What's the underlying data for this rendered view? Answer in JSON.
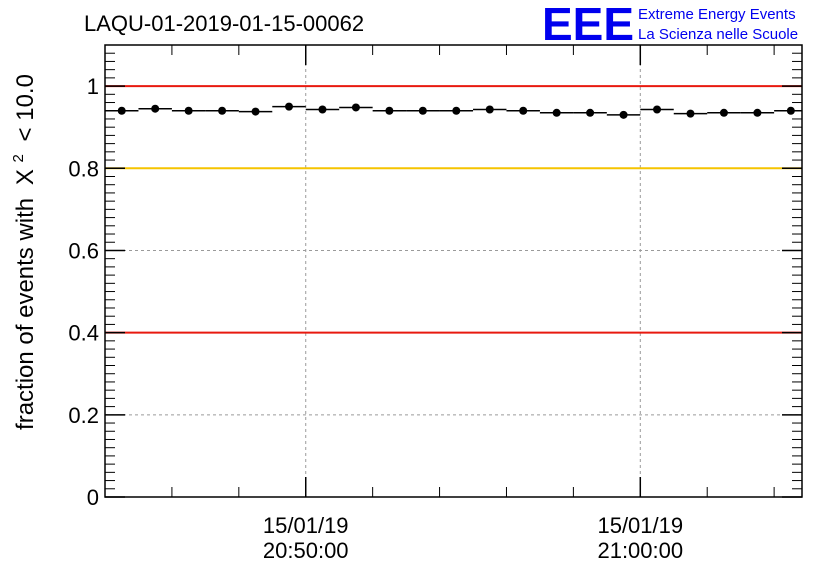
{
  "header": {
    "title": "LAQU-01-2019-01-15-00062",
    "logo_text": "EEE",
    "logo_line1": "Extreme Energy Events",
    "logo_line2": "La Scienza nelle Scuole"
  },
  "colors": {
    "threshold_red": "#e8190f",
    "threshold_yellow": "#f5c400",
    "points": "#000000",
    "logo": "#0000ee"
  },
  "chart_data": {
    "type": "scatter",
    "title": "LAQU-01-2019-01-15-00062",
    "ylabel_prefix": "fraction of events with",
    "ylabel_symbol": "X",
    "ylabel_superscript": "2",
    "ylabel_suffix": "< 10.0",
    "ylim": [
      0,
      1.1
    ],
    "yticks": [
      0,
      0.2,
      0.4,
      0.6,
      0.8,
      1
    ],
    "ytick_labels": [
      "0",
      "0.2",
      "0.4",
      "0.6",
      "0.8",
      "1"
    ],
    "xlim": [
      "20:44:00",
      "21:04:50"
    ],
    "xticks": [
      {
        "t": "20:50:00",
        "date": "15/01/19",
        "time": "20:50:00"
      },
      {
        "t": "21:00:00",
        "date": "15/01/19",
        "time": "21:00:00"
      }
    ],
    "grid": true,
    "bin_width_seconds": 60,
    "points": [
      {
        "x": "20:44:30",
        "y": 0.94
      },
      {
        "x": "20:45:30",
        "y": 0.945
      },
      {
        "x": "20:46:30",
        "y": 0.94
      },
      {
        "x": "20:47:30",
        "y": 0.94
      },
      {
        "x": "20:48:30",
        "y": 0.938
      },
      {
        "x": "20:49:30",
        "y": 0.95
      },
      {
        "x": "20:50:30",
        "y": 0.943
      },
      {
        "x": "20:51:30",
        "y": 0.948
      },
      {
        "x": "20:52:30",
        "y": 0.94
      },
      {
        "x": "20:53:30",
        "y": 0.94
      },
      {
        "x": "20:54:30",
        "y": 0.94
      },
      {
        "x": "20:55:30",
        "y": 0.943
      },
      {
        "x": "20:56:30",
        "y": 0.94
      },
      {
        "x": "20:57:30",
        "y": 0.935
      },
      {
        "x": "20:58:30",
        "y": 0.935
      },
      {
        "x": "20:59:30",
        "y": 0.93
      },
      {
        "x": "21:00:30",
        "y": 0.943
      },
      {
        "x": "21:01:30",
        "y": 0.933
      },
      {
        "x": "21:02:30",
        "y": 0.935
      },
      {
        "x": "21:03:30",
        "y": 0.935
      },
      {
        "x": "21:04:30",
        "y": 0.94
      }
    ],
    "thresholds": [
      {
        "y": 1.0,
        "color": "#e8190f"
      },
      {
        "y": 0.8,
        "color": "#f5c400"
      },
      {
        "y": 0.4,
        "color": "#e8190f"
      }
    ]
  }
}
